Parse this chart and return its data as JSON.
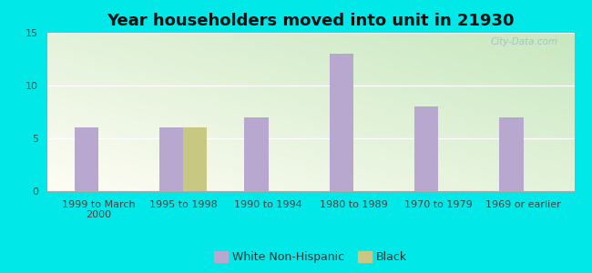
{
  "title": "Year householders moved into unit in 21930",
  "categories": [
    "1999 to March\n2000",
    "1995 to 1998",
    "1990 to 1994",
    "1980 to 1989",
    "1970 to 1979",
    "1969 or earlier"
  ],
  "white_values": [
    6,
    6,
    7,
    13,
    8,
    7
  ],
  "black_values": [
    0,
    6,
    0,
    0,
    0,
    0
  ],
  "white_color": "#b8a8d0",
  "black_color": "#c8c882",
  "ylim": [
    0,
    15
  ],
  "yticks": [
    0,
    5,
    10,
    15
  ],
  "outer_bg": "#00e8e8",
  "bar_width": 0.28,
  "title_fontsize": 13,
  "tick_fontsize": 8,
  "legend_fontsize": 9,
  "watermark": "City-Data.com"
}
